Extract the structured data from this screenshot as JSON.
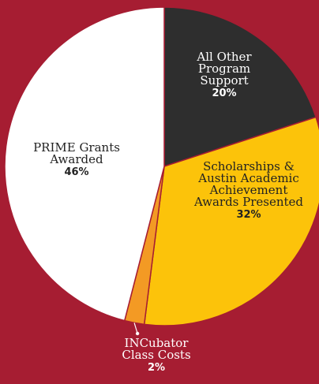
{
  "chart_data": {
    "type": "pie",
    "title": "",
    "slices": [
      {
        "label": [
          "All Other",
          "Program",
          "Support"
        ],
        "value": 20,
        "percent_label": "20%",
        "color": "#2e2e2e",
        "text_color": "#ffffff"
      },
      {
        "label": [
          "Scholarships &",
          "Austin Academic",
          "Achievement",
          "Awards Presented"
        ],
        "value": 32,
        "percent_label": "32%",
        "color": "#fcc30a",
        "text_color": "#222222"
      },
      {
        "label": [
          "INCubator",
          "Class Costs"
        ],
        "value": 2,
        "percent_label": "2%",
        "color": "#f39a24",
        "text_color": "#ffffff"
      },
      {
        "label": [
          "PRIME Grants",
          "Awarded"
        ],
        "value": 46,
        "percent_label": "46%",
        "color": "#ffffff",
        "text_color": "#222222"
      }
    ],
    "start_angle_deg": 0,
    "direction": "clockwise",
    "slice_separator_color": "#a61d32",
    "background_color": "#a61d32"
  }
}
